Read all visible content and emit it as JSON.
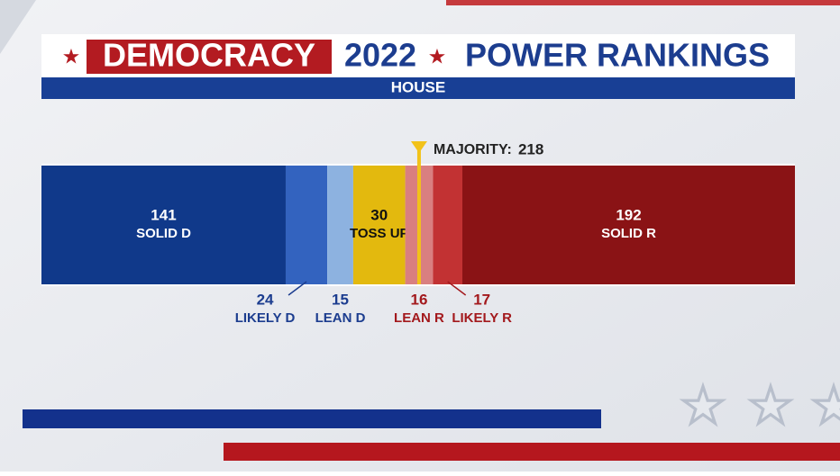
{
  "chart_data": {
    "type": "stacked-bar",
    "title_parts": [
      "DEMOCRACY",
      "2022",
      "POWER RANKINGS"
    ],
    "subtitle": "HOUSE",
    "series": [
      {
        "name": "SOLID D",
        "color": "#10398a",
        "values": [
          141
        ]
      },
      {
        "name": "LIKELY D",
        "color": "#3363bf",
        "values": [
          24
        ]
      },
      {
        "name": "LEAN D",
        "color": "#8db2e0",
        "values": [
          15
        ]
      },
      {
        "name": "TOSS UP",
        "color": "#e3b90e",
        "values": [
          30
        ]
      },
      {
        "name": "LEAN R",
        "color": "#d97f80",
        "values": [
          16
        ]
      },
      {
        "name": "LIKELY R",
        "color": "#c23233",
        "values": [
          17
        ]
      },
      {
        "name": "SOLID R",
        "color": "#8a1315",
        "values": [
          192
        ]
      }
    ],
    "xlim": [
      0,
      435
    ],
    "majority": {
      "label": "MAJORITY:",
      "value": 218
    }
  }
}
